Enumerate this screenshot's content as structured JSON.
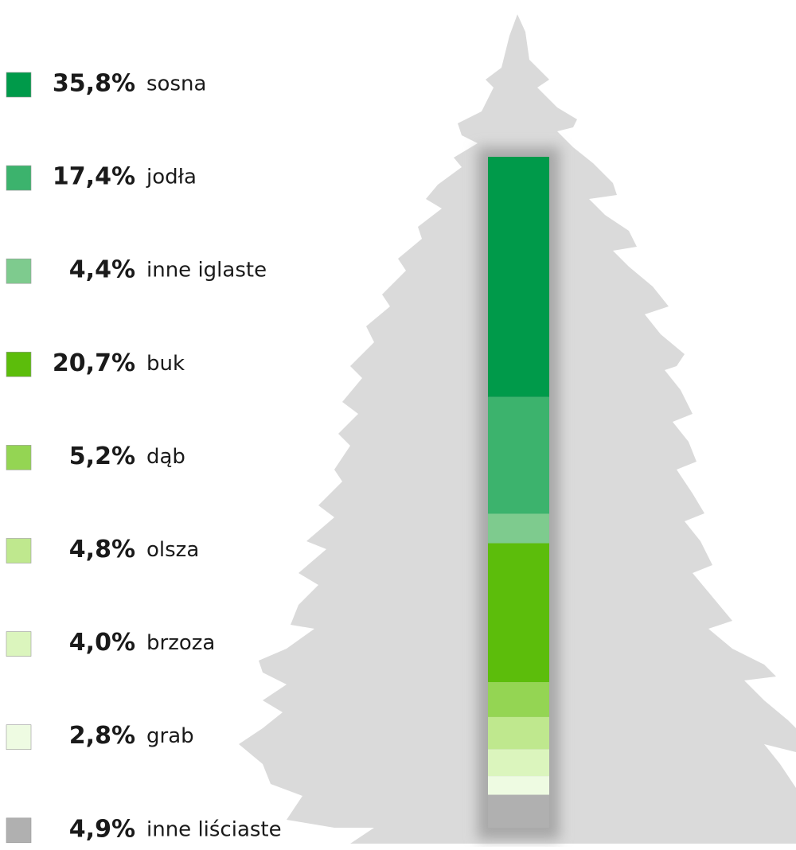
{
  "chart_data": {
    "type": "stacked-bar",
    "categories": [
      "sosna",
      "jodła",
      "inne iglaste",
      "buk",
      "dąb",
      "olsza",
      "brzoza",
      "grab",
      "inne liściaste"
    ],
    "values": [
      35.8,
      17.4,
      4.4,
      20.7,
      5.2,
      4.8,
      4.0,
      2.8,
      4.9
    ],
    "value_labels": [
      "35,8%",
      "17,4%",
      "4,4%",
      "20,7%",
      "5,2%",
      "4,8%",
      "4,0%",
      "2,8%",
      "4,9%"
    ],
    "colors": [
      "#009a4a",
      "#3cb36d",
      "#7ecb8e",
      "#5cbd0b",
      "#94d553",
      "#bfe88e",
      "#dbf5bd",
      "#eefbe2",
      "#b0b0b0"
    ]
  }
}
